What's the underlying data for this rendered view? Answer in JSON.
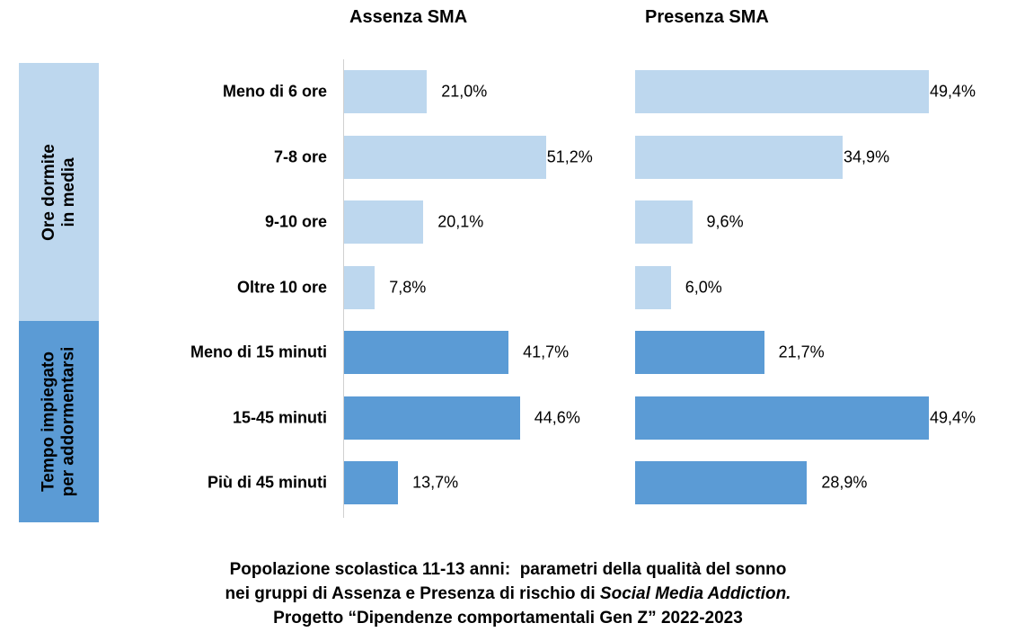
{
  "chart_data": {
    "type": "bar",
    "orientation": "horizontal",
    "panels": [
      {
        "title": "Assenza SMA",
        "values": [
          21.0,
          51.2,
          20.1,
          7.8,
          41.7,
          44.6,
          13.7
        ],
        "labels": [
          "21,0%",
          "51,2%",
          "20,1%",
          "7,8%",
          "41,7%",
          "44,6%",
          "13,7%"
        ]
      },
      {
        "title": "Presenza SMA",
        "values": [
          49.4,
          34.9,
          9.6,
          6.0,
          21.7,
          49.4,
          28.9
        ],
        "labels": [
          "49,4%",
          "34,9%",
          "9,6%",
          "6,0%",
          "21,7%",
          "49,4%",
          "28,9%"
        ]
      }
    ],
    "categories": [
      "Meno di 6 ore",
      "7-8 ore",
      "9-10 ore",
      "Oltre 10 ore",
      "Meno di 15 minuti",
      "15-45 minuti",
      "Più di 45 minuti"
    ],
    "groups": [
      {
        "label_line1": "Ore dormite",
        "label_line2": "in media",
        "count": 4,
        "color": "#BDD7EE"
      },
      {
        "label_line1": "Tempo impiegato",
        "label_line2": "per addormentarsi",
        "count": 3,
        "color": "#5B9BD5"
      }
    ],
    "unit": "%",
    "grid": false,
    "legend": "none"
  },
  "caption": {
    "line1": "Popolazione scolastica 11-13 anni:  parametri della qualità del sonno",
    "line2_prefix": "nei gruppi di Assenza e Presenza di rischio di ",
    "line2_italic": "Social Media Addiction.",
    "line3": "Progetto “Dipendenze comportamentali Gen Z” 2022-2023"
  }
}
